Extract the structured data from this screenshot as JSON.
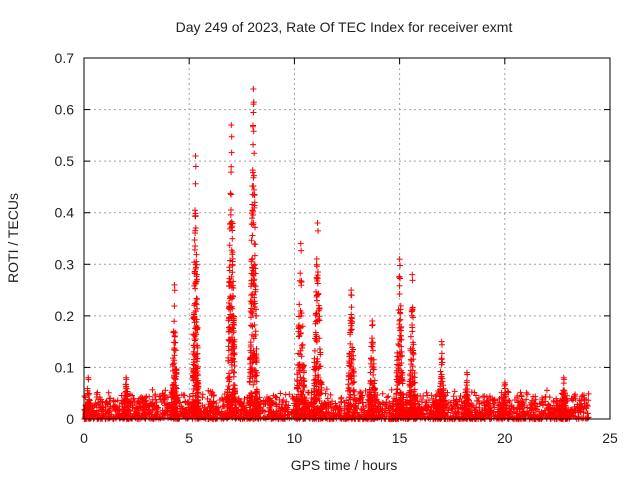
{
  "chart_data": {
    "type": "scatter",
    "title": "Day 249 of 2023, Rate Of TEC Index for receiver exmt",
    "xlabel": "GPS time / hours",
    "ylabel": "ROTI / TECUs",
    "xlim": [
      0,
      25
    ],
    "ylim": [
      0,
      0.7
    ],
    "xticks": [
      0,
      5,
      10,
      15,
      20,
      25
    ],
    "xtick_labels": [
      "0",
      "5",
      "10",
      "15",
      "20",
      "25"
    ],
    "yticks": [
      0,
      0.1,
      0.2,
      0.3,
      0.4,
      0.5,
      0.6,
      0.7
    ],
    "ytick_labels": [
      "0",
      "0.1",
      "0.2",
      "0.3",
      "0.4",
      "0.5",
      "0.6",
      "0.7"
    ],
    "grid": true,
    "marker": "+",
    "color": "#ff0000",
    "baseline": {
      "x_range": [
        0,
        24
      ],
      "typical_max": 0.05
    },
    "spikes": [
      {
        "x": 0.2,
        "peak": 0.08,
        "width": 0.3
      },
      {
        "x": 2.0,
        "peak": 0.08,
        "width": 0.3
      },
      {
        "x": 4.3,
        "peak": 0.26,
        "width": 0.3
      },
      {
        "x": 5.3,
        "peak": 0.51,
        "width": 0.3
      },
      {
        "x": 7.0,
        "peak": 0.57,
        "width": 0.4
      },
      {
        "x": 8.05,
        "peak": 0.64,
        "width": 0.4
      },
      {
        "x": 10.3,
        "peak": 0.34,
        "width": 0.45
      },
      {
        "x": 11.1,
        "peak": 0.38,
        "width": 0.45
      },
      {
        "x": 12.7,
        "peak": 0.25,
        "width": 0.4
      },
      {
        "x": 13.7,
        "peak": 0.19,
        "width": 0.4
      },
      {
        "x": 15.0,
        "peak": 0.31,
        "width": 0.4
      },
      {
        "x": 15.6,
        "peak": 0.28,
        "width": 0.35
      },
      {
        "x": 17.0,
        "peak": 0.15,
        "width": 0.3
      },
      {
        "x": 18.2,
        "peak": 0.09,
        "width": 0.35
      },
      {
        "x": 20.0,
        "peak": 0.07,
        "width": 0.4
      },
      {
        "x": 22.8,
        "peak": 0.08,
        "width": 0.35
      }
    ]
  }
}
